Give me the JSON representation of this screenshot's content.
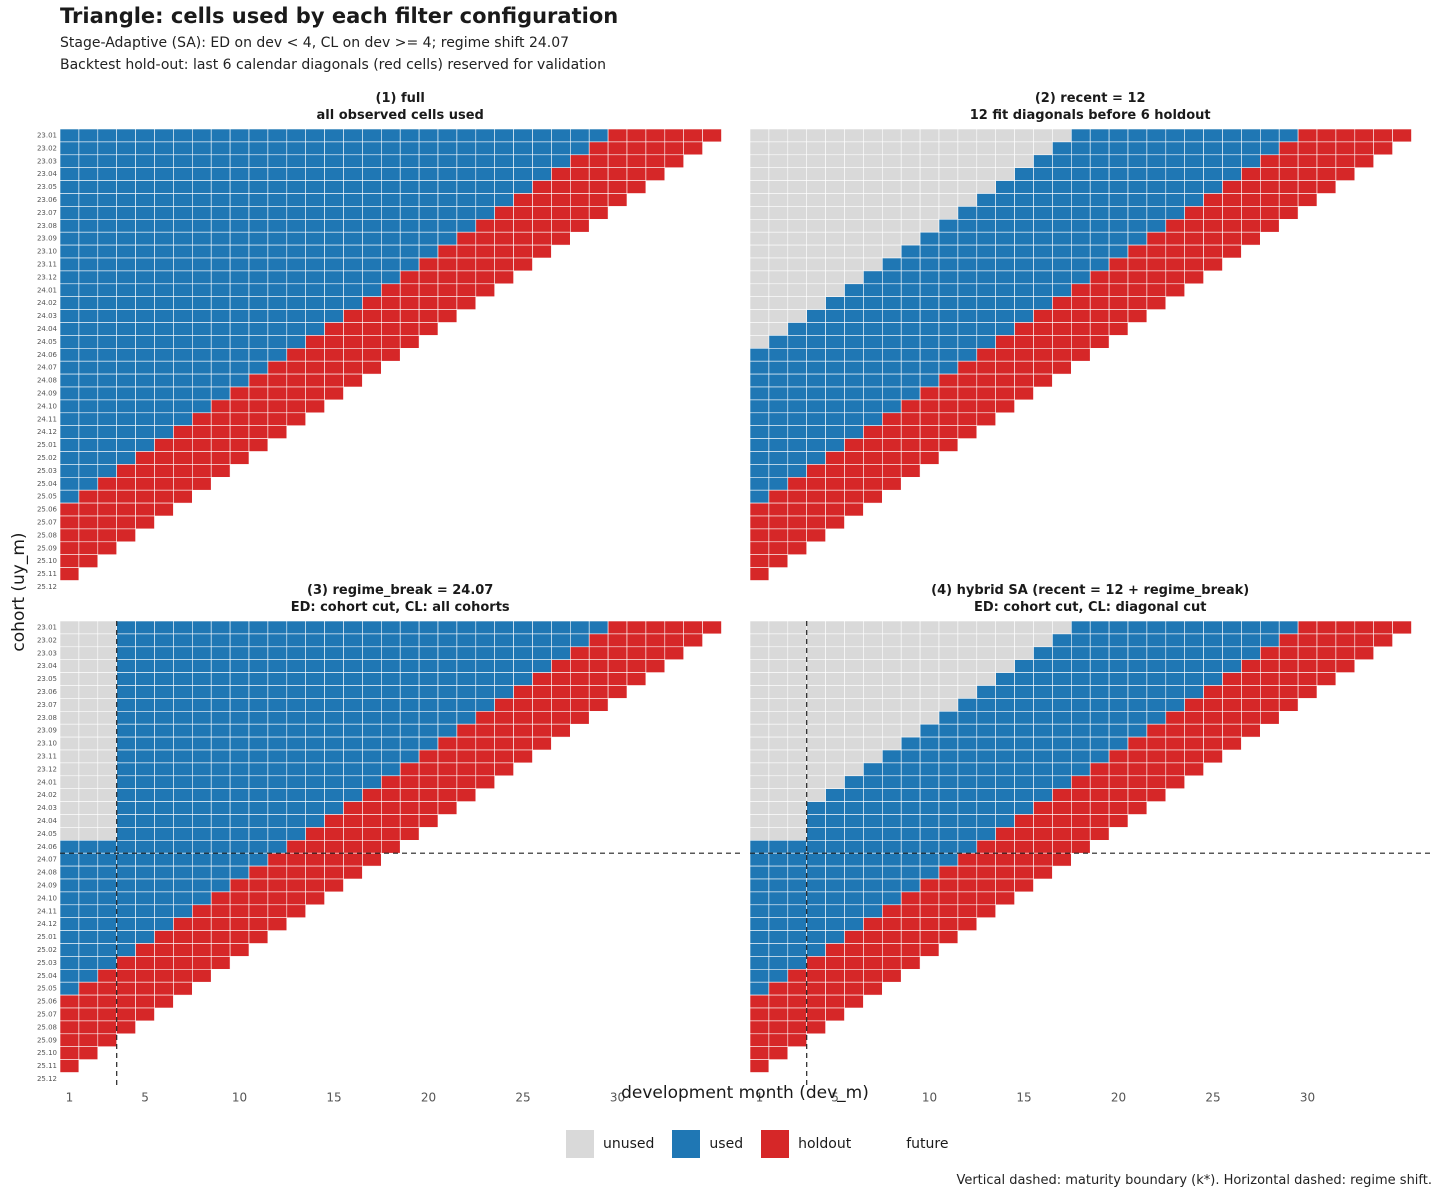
{
  "title": "Triangle: cells used by each filter configuration",
  "subtitle1": "Stage-Adaptive (SA): ED on dev < 4, CL on dev >= 4; regime shift 24.07",
  "subtitle2": "Backtest hold-out: last 6 calendar diagonals (red cells) reserved for validation",
  "caption": "Vertical dashed: maturity boundary (k*).  Horizontal dashed: regime shift.",
  "colors": {
    "unused": "#d9d9d9",
    "used": "#1f77b4",
    "holdout": "#d62728",
    "future": "#ffffff"
  },
  "legend": [
    {
      "label": "unused",
      "color": "#d9d9d9"
    },
    {
      "label": "used",
      "color": "#1f77b4"
    },
    {
      "label": "holdout",
      "color": "#d62728"
    },
    {
      "label": "future",
      "color": "#ffffff"
    }
  ],
  "chart_data": {
    "type": "heatmap",
    "xlabel": "development month (dev_m)",
    "ylabel": "cohort (uy_m)",
    "x_ticks": [
      1,
      5,
      10,
      15,
      20,
      25,
      30
    ],
    "x_range": [
      1,
      36
    ],
    "cohorts": [
      "23.01",
      "23.02",
      "23.03",
      "23.04",
      "23.05",
      "23.06",
      "23.07",
      "23.08",
      "23.09",
      "23.10",
      "23.11",
      "23.12",
      "24.01",
      "24.02",
      "24.03",
      "24.04",
      "24.05",
      "24.06",
      "24.07",
      "24.08",
      "24.09",
      "24.10",
      "24.11",
      "24.12",
      "25.01",
      "25.02",
      "25.03",
      "25.04",
      "25.05",
      "25.06",
      "25.07",
      "25.08",
      "25.09",
      "25.10",
      "25.11",
      "25.12"
    ],
    "observed_cells": "dev_m from 1 to (37 - cohort index); later cells are future",
    "holdout_diagonals": 6,
    "maturity_boundary_dev": 4,
    "regime_shift_cohort": "24.07",
    "panels": [
      {
        "title": "(1) full",
        "subtitle": "all observed cells used",
        "mode": "full"
      },
      {
        "title": "(2) recent = 12",
        "subtitle": "12 fit diagonals before 6 holdout",
        "mode": "recent",
        "recent_diagonals": 12
      },
      {
        "title": "(3) regime_break = 24.07",
        "subtitle": "ED: cohort cut, CL: all cohorts",
        "mode": "regime"
      },
      {
        "title": "(4) hybrid SA (recent = 12 + regime_break)",
        "subtitle": "ED: cohort cut, CL: diagonal cut",
        "mode": "hybrid",
        "recent_diagonals": 12
      }
    ]
  }
}
